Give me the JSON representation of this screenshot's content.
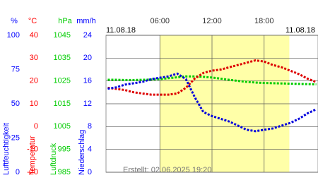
{
  "chart_data": {
    "type": "line",
    "date_left": "11.08.18",
    "date_right": "11.08.18",
    "footer": "Erstellt: 02.06.2025 19:20",
    "x": [
      0,
      1,
      2,
      3,
      4,
      5,
      6,
      7,
      8,
      9,
      10,
      11,
      12,
      13,
      14,
      15,
      16,
      17,
      18,
      19,
      20,
      21,
      22,
      23,
      24
    ],
    "xlim": [
      -0.2,
      24.2
    ],
    "xticks": [
      {
        "value": 6,
        "label": "06:00"
      },
      {
        "value": 12,
        "label": "12:00"
      },
      {
        "value": 18,
        "label": "18:00"
      }
    ],
    "daylight": [
      6,
      20.9
    ],
    "grid": true,
    "axes": [
      {
        "unit": "%",
        "name": "Luftfeuchtigkeit",
        "color": "#0000ff",
        "lim": [
          0,
          100
        ],
        "ticks": [
          0,
          25,
          50,
          75,
          100
        ]
      },
      {
        "unit": "°C",
        "name": "Temperatur",
        "color": "#ff0000",
        "lim": [
          -20,
          40
        ],
        "ticks": [
          -20,
          -10,
          0,
          10,
          20,
          30,
          40
        ]
      },
      {
        "unit": "hPa",
        "name": "Luftdruck",
        "color": "#00cc00",
        "lim": [
          985,
          1045
        ],
        "ticks": [
          985,
          995,
          1005,
          1015,
          1025,
          1035,
          1045
        ]
      },
      {
        "unit": "mm/h",
        "name": "Niederschlag",
        "color": "#0000ff",
        "lim": [
          0,
          24
        ],
        "ticks": [
          0,
          4,
          8,
          12,
          16,
          20,
          24
        ]
      }
    ],
    "series": [
      {
        "axis": 2,
        "color": "#00cc00",
        "values": [
          1025.5,
          1025.5,
          1025.4,
          1025.4,
          1025.5,
          1025.6,
          1025.8,
          1026.2,
          1026.6,
          1027,
          1027,
          1026.8,
          1026.5,
          1026,
          1025.5,
          1025,
          1024.6,
          1024.3,
          1024.1,
          1024,
          1023.9,
          1023.8,
          1023.7,
          1023.6,
          1023.5
        ]
      },
      {
        "axis": 1,
        "color": "#dd0000",
        "values": [
          17,
          16.5,
          16,
          15,
          14.5,
          14,
          14,
          14,
          14.5,
          17,
          21,
          23.5,
          24.5,
          25,
          26,
          27,
          28,
          29,
          28.5,
          27,
          26,
          24.5,
          23,
          21,
          19.5
        ]
      },
      {
        "axis": 0,
        "color": "#0000dd",
        "values": [
          61,
          62,
          64,
          65,
          66,
          68,
          69,
          70,
          72,
          68,
          55,
          44,
          41,
          39,
          37,
          34,
          31,
          30,
          31,
          32,
          34,
          36,
          39,
          43,
          46
        ]
      }
    ]
  }
}
